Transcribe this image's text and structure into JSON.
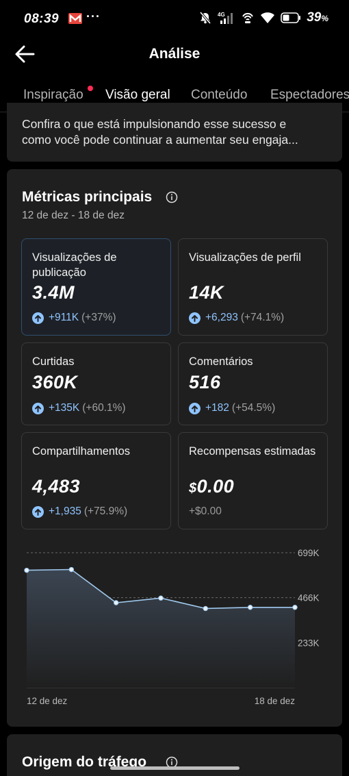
{
  "status_bar": {
    "time": "08:39",
    "dots": "···",
    "network": "4G",
    "battery": "39",
    "battery_unit": "%"
  },
  "app_bar": {
    "title": "Análise"
  },
  "tabs": [
    {
      "label": "Inspiração",
      "active": false,
      "has_dot": true
    },
    {
      "label": "Visão geral",
      "active": true
    },
    {
      "label": "Conteúdo",
      "active": false
    },
    {
      "label": "Espectadores",
      "active": false
    }
  ],
  "top_card": {
    "line1": "Confira o que está impulsionando esse sucesso e",
    "line2": "como você pode continuar a aumentar seu engaja..."
  },
  "metrics": {
    "title": "Métricas principais",
    "date_range": "12 de dez - 18 de dez",
    "tiles": [
      {
        "label": "Visualizações de publicação",
        "value": "3.4M",
        "change": "+911K",
        "change_pct": "(+37%)",
        "selected": true
      },
      {
        "label": "Visualizações de perfil",
        "value": "14K",
        "change": "+6,293",
        "change_pct": "(+74.1%)"
      },
      {
        "label": "Curtidas",
        "value": "360K",
        "change": "+135K",
        "change_pct": "(+60.1%)"
      },
      {
        "label": "Comentários",
        "value": "516",
        "change": "+182",
        "change_pct": "(+54.5%)"
      },
      {
        "label": "Compartilhamentos",
        "value": "4,483",
        "change": "+1,935",
        "change_pct": "(+75.9%)"
      },
      {
        "label": "Recompensas estimadas",
        "currency": "$",
        "value": "0.00",
        "change": "+$0.00"
      }
    ]
  },
  "chart_data": {
    "type": "area",
    "x": [
      "12 de dez",
      "13 de dez",
      "14 de dez",
      "15 de dez",
      "16 de dez",
      "17 de dez",
      "18 de dez"
    ],
    "series": [
      {
        "values": [
          608000,
          612000,
          440000,
          464000,
          410000,
          416000,
          416000
        ]
      }
    ],
    "x_tick_labels": [
      "12 de dez",
      "18 de dez"
    ],
    "y_tick_labels": [
      "699K",
      "466K",
      "233K"
    ],
    "y_ticks": [
      699000,
      466000,
      233000
    ],
    "ylim": [
      0,
      699000
    ],
    "grid": true,
    "colors": {
      "line": "#9fc7ec",
      "fill_top": "#3b4552",
      "fill_bottom": "#1f1f1f",
      "grid": "#6a6a6a"
    }
  },
  "next_card": {
    "title": "Origem do tráfego"
  },
  "colors": {
    "background": "#000000",
    "card": "#1f1f1f",
    "accent_blue": "#8fc4ff",
    "notification_dot": "#fe2c55"
  }
}
